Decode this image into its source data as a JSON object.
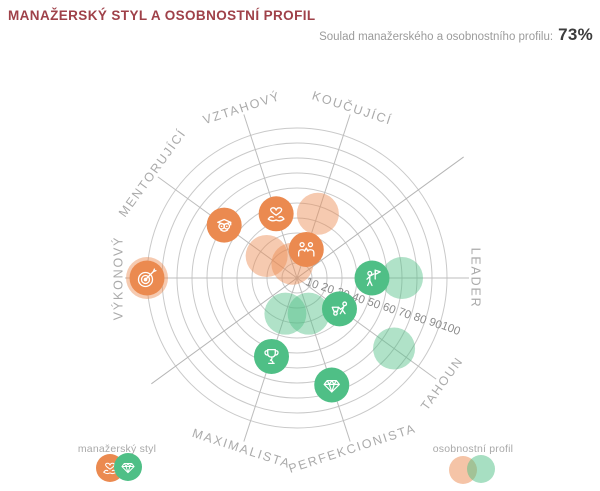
{
  "header": {
    "title": "MANAŽERSKÝ STYL A OSOBNOSTNÍ PROFIL",
    "match_label": "Soulad manažerského a osobnostního profilu:",
    "match_value": "73%"
  },
  "legend": {
    "style_label": "manažerský styl",
    "profile_label": "osobnostní profil"
  },
  "colors": {
    "managersky": "#EB8A50",
    "osobnostni": "#4FBF86",
    "title": "#9F4149",
    "grid": "#C9C9C9"
  },
  "chart_data": {
    "type": "polar-bubble",
    "title": "Manažerský styl a osobnostní profil",
    "legend_position": "bottom",
    "grid": true,
    "scale": {
      "min": 0,
      "max": 100,
      "ring_step": 10,
      "ticks": [
        10,
        20,
        30,
        40,
        50,
        60,
        70,
        80,
        90,
        100
      ]
    },
    "series_names": [
      "manažerský styl",
      "osobnostní profil"
    ],
    "axes": [
      {
        "id": "vztahovy",
        "label": "VZTAHOVÝ",
        "icon": "heart-in-hands-icon",
        "angle_deg": 108,
        "group": "managersky",
        "style_value": 45,
        "profile_value": 10
      },
      {
        "id": "koucujici",
        "label": "KOUČUJÍCÍ",
        "icon": "two-people-icon",
        "angle_deg": 72,
        "group": "managersky",
        "style_value": 20,
        "profile_value": 45
      },
      {
        "id": "mentorujici",
        "label": "MENTORUJÍCÍ",
        "icon": "owl-icon",
        "angle_deg": 144,
        "group": "managersky",
        "style_value": 60,
        "profile_value": 25
      },
      {
        "id": "vykonovy",
        "label": "VÝKONOVÝ",
        "icon": "target-icon",
        "angle_deg": 180,
        "group": "managersky",
        "style_value": 100,
        "profile_value": 100
      },
      {
        "id": "leader",
        "label": "LEADER",
        "icon": "flag-person-icon",
        "angle_deg": 0,
        "group": "osobnostni",
        "style_value": 50,
        "profile_value": 70
      },
      {
        "id": "tahoun",
        "label": "TAHOUN",
        "icon": "wheelbarrow-icon",
        "angle_deg": -36,
        "group": "osobnostni",
        "style_value": 35,
        "profile_value": 80
      },
      {
        "id": "perfekcionista",
        "label": "PERFEKCIONISTA",
        "icon": "diamond-icon",
        "angle_deg": -72,
        "group": "osobnostni",
        "style_value": 75,
        "profile_value": 25
      },
      {
        "id": "maximalista",
        "label": "MAXIMALISTA",
        "icon": "trophy-icon",
        "angle_deg": -108,
        "group": "osobnostni",
        "style_value": 55,
        "profile_value": 25
      }
    ]
  }
}
